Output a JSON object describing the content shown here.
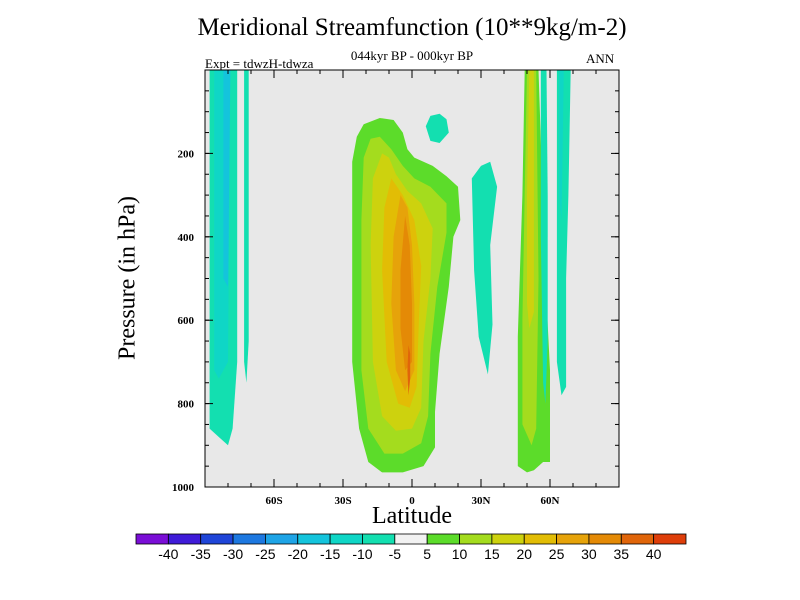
{
  "title": "Meridional Streamfunction (10**9kg/m-2)",
  "subtitle": "044kyr BP - 000kyr BP",
  "expt": "Expt = tdwzH-tdwza",
  "season": "ANN",
  "colors": {
    "background": "#e8e8e8",
    "levels": [
      "#7a0ed6",
      "#3f1bd8",
      "#1f45d8",
      "#1d78e0",
      "#1ea4e6",
      "#14c4dc",
      "#0fd6c6",
      "#13dfb0",
      "#f2f2f2",
      "#5cdc2a",
      "#a4dc1e",
      "#cdd20e",
      "#e2bd05",
      "#e6a30a",
      "#e48a06",
      "#e0650a",
      "#de3e0a"
    ]
  },
  "chart_data": {
    "type": "heatmap",
    "xlabel": "Latitude",
    "ylabel": "Pressure (in hPa)",
    "xlim": [
      -90,
      90
    ],
    "ylim": [
      1000,
      0
    ],
    "y_reversed": true,
    "x_ticks": [
      {
        "value": -60,
        "label": "60S"
      },
      {
        "value": -30,
        "label": "30S"
      },
      {
        "value": 0,
        "label": "0"
      },
      {
        "value": 30,
        "label": "30N"
      },
      {
        "value": 60,
        "label": "60N"
      }
    ],
    "y_ticks": [
      200,
      400,
      600,
      800,
      1000
    ],
    "colorbar_levels": [
      -40,
      -35,
      -30,
      -25,
      -20,
      -15,
      -10,
      -5,
      5,
      10,
      15,
      20,
      25,
      30,
      35,
      40
    ],
    "regions": [
      {
        "name": "southern-polar-negative",
        "level_index": 7,
        "points": [
          [
            -88,
            0
          ],
          [
            -88,
            860
          ],
          [
            -84,
            880
          ],
          [
            -80,
            900
          ],
          [
            -78,
            860
          ],
          [
            -76,
            700
          ],
          [
            -76,
            0
          ]
        ]
      },
      {
        "name": "southern-polar-core",
        "level_index": 6,
        "points": [
          [
            -86,
            0
          ],
          [
            -86,
            720
          ],
          [
            -84,
            740
          ],
          [
            -80,
            700
          ],
          [
            -79,
            0
          ]
        ]
      },
      {
        "name": "southern-polar-inner",
        "level_index": 5,
        "points": [
          [
            -82,
            0
          ],
          [
            -82,
            500
          ],
          [
            -80,
            520
          ],
          [
            -79,
            0
          ]
        ]
      },
      {
        "name": "southern-polar-strip",
        "level_index": 7,
        "points": [
          [
            -73,
            0
          ],
          [
            -73,
            700
          ],
          [
            -72,
            750
          ],
          [
            -71,
            650
          ],
          [
            -71,
            0
          ]
        ]
      },
      {
        "name": "equatorial-outer",
        "level_index": 9,
        "points": [
          [
            -21,
            130
          ],
          [
            -24,
            160
          ],
          [
            -26,
            220
          ],
          [
            -26,
            700
          ],
          [
            -23,
            860
          ],
          [
            -19,
            940
          ],
          [
            -13,
            965
          ],
          [
            -4,
            965
          ],
          [
            5,
            950
          ],
          [
            10,
            905
          ],
          [
            10,
            820
          ],
          [
            12,
            680
          ],
          [
            16,
            520
          ],
          [
            18,
            400
          ],
          [
            21,
            360
          ],
          [
            20,
            280
          ],
          [
            15,
            255
          ],
          [
            9,
            230
          ],
          [
            1,
            210
          ],
          [
            -2,
            190
          ],
          [
            -4,
            150
          ],
          [
            -8,
            120
          ],
          [
            -14,
            115
          ]
        ]
      },
      {
        "name": "equatorial-10",
        "level_index": 10,
        "points": [
          [
            -18,
            165
          ],
          [
            -21,
            210
          ],
          [
            -22,
            360
          ],
          [
            -22,
            720
          ],
          [
            -19,
            860
          ],
          [
            -12,
            920
          ],
          [
            -4,
            920
          ],
          [
            4,
            895
          ],
          [
            7,
            830
          ],
          [
            8,
            680
          ],
          [
            11,
            520
          ],
          [
            15,
            390
          ],
          [
            15,
            320
          ],
          [
            8,
            280
          ],
          [
            1,
            260
          ],
          [
            -4,
            230
          ],
          [
            -9,
            190
          ],
          [
            -14,
            160
          ]
        ]
      },
      {
        "name": "equatorial-15",
        "level_index": 11,
        "points": [
          [
            -13,
            200
          ],
          [
            -17,
            260
          ],
          [
            -18,
            420
          ],
          [
            -17,
            700
          ],
          [
            -13,
            830
          ],
          [
            -7,
            865
          ],
          [
            0,
            860
          ],
          [
            4,
            810
          ],
          [
            5,
            650
          ],
          [
            8,
            500
          ],
          [
            9,
            380
          ],
          [
            4,
            320
          ],
          [
            -2,
            290
          ],
          [
            -7,
            250
          ],
          [
            -10,
            210
          ]
        ]
      },
      {
        "name": "equatorial-20",
        "level_index": 12,
        "points": [
          [
            -9,
            260
          ],
          [
            -12,
            330
          ],
          [
            -13,
            480
          ],
          [
            -11,
            700
          ],
          [
            -6,
            800
          ],
          [
            -1,
            810
          ],
          [
            2,
            760
          ],
          [
            3,
            600
          ],
          [
            4,
            470
          ],
          [
            1,
            360
          ],
          [
            -4,
            300
          ]
        ]
      },
      {
        "name": "equatorial-25",
        "level_index": 13,
        "points": [
          [
            -5,
            300
          ],
          [
            -8,
            400
          ],
          [
            -9,
            560
          ],
          [
            -7,
            720
          ],
          [
            -3,
            770
          ],
          [
            1,
            720
          ],
          [
            1,
            560
          ],
          [
            0,
            420
          ],
          [
            -2,
            330
          ]
        ]
      },
      {
        "name": "equatorial-30",
        "level_index": 14,
        "points": [
          [
            -3,
            350
          ],
          [
            -5,
            480
          ],
          [
            -5,
            620
          ],
          [
            -3,
            720
          ],
          [
            0,
            700
          ],
          [
            0,
            560
          ],
          [
            -1,
            420
          ]
        ]
      },
      {
        "name": "equatorial-35",
        "level_index": 15,
        "points": [
          [
            -1.5,
            660
          ],
          [
            -2,
            720
          ],
          [
            -1.5,
            780
          ],
          [
            -0.8,
            740
          ],
          [
            -0.8,
            680
          ]
        ]
      },
      {
        "name": "tropical-blob-top",
        "level_index": 7,
        "points": [
          [
            8,
            110
          ],
          [
            6,
            135
          ],
          [
            8,
            170
          ],
          [
            12,
            175
          ],
          [
            16,
            150
          ],
          [
            15,
            118
          ],
          [
            12,
            105
          ]
        ]
      },
      {
        "name": "nh-subtropical-negative",
        "level_index": 7,
        "points": [
          [
            26,
            260
          ],
          [
            27,
            480
          ],
          [
            29,
            640
          ],
          [
            33,
            730
          ],
          [
            35,
            610
          ],
          [
            34,
            420
          ],
          [
            37,
            280
          ],
          [
            34,
            220
          ],
          [
            30,
            230
          ]
        ]
      },
      {
        "name": "nh-midlat-outer",
        "level_index": 9,
        "points": [
          [
            49,
            0
          ],
          [
            48,
            300
          ],
          [
            46,
            640
          ],
          [
            46,
            950
          ],
          [
            50,
            965
          ],
          [
            53,
            960
          ],
          [
            57,
            940
          ],
          [
            60,
            940
          ],
          [
            60,
            720
          ],
          [
            58,
            500
          ],
          [
            55,
            0
          ]
        ]
      },
      {
        "name": "nh-midlat-10",
        "level_index": 10,
        "points": [
          [
            50,
            0
          ],
          [
            49,
            300
          ],
          [
            48,
            600
          ],
          [
            48,
            850
          ],
          [
            52,
            900
          ],
          [
            54,
            860
          ],
          [
            55,
            500
          ],
          [
            54,
            0
          ]
        ]
      },
      {
        "name": "nh-midlat-15",
        "level_index": 11,
        "points": [
          [
            51,
            0
          ],
          [
            50,
            300
          ],
          [
            50,
            560
          ],
          [
            51,
            620
          ],
          [
            53,
            580
          ],
          [
            53,
            0
          ]
        ]
      },
      {
        "name": "nh-cross-negative",
        "level_index": 7,
        "points": [
          [
            56,
            0
          ],
          [
            56,
            400
          ],
          [
            57,
            750
          ],
          [
            58,
            800
          ],
          [
            59,
            650
          ],
          [
            59,
            300
          ],
          [
            58.5,
            0
          ]
        ]
      },
      {
        "name": "nh-polar-negative",
        "level_index": 7,
        "points": [
          [
            63,
            0
          ],
          [
            63,
            500
          ],
          [
            63,
            700
          ],
          [
            65,
            780
          ],
          [
            67,
            760
          ],
          [
            67,
            500
          ],
          [
            68,
            300
          ],
          [
            69,
            0
          ]
        ]
      },
      {
        "name": "nh-polar-core",
        "level_index": 6,
        "points": [
          [
            64,
            0
          ],
          [
            64,
            300
          ],
          [
            65,
            360
          ],
          [
            66,
            0
          ]
        ]
      }
    ]
  }
}
